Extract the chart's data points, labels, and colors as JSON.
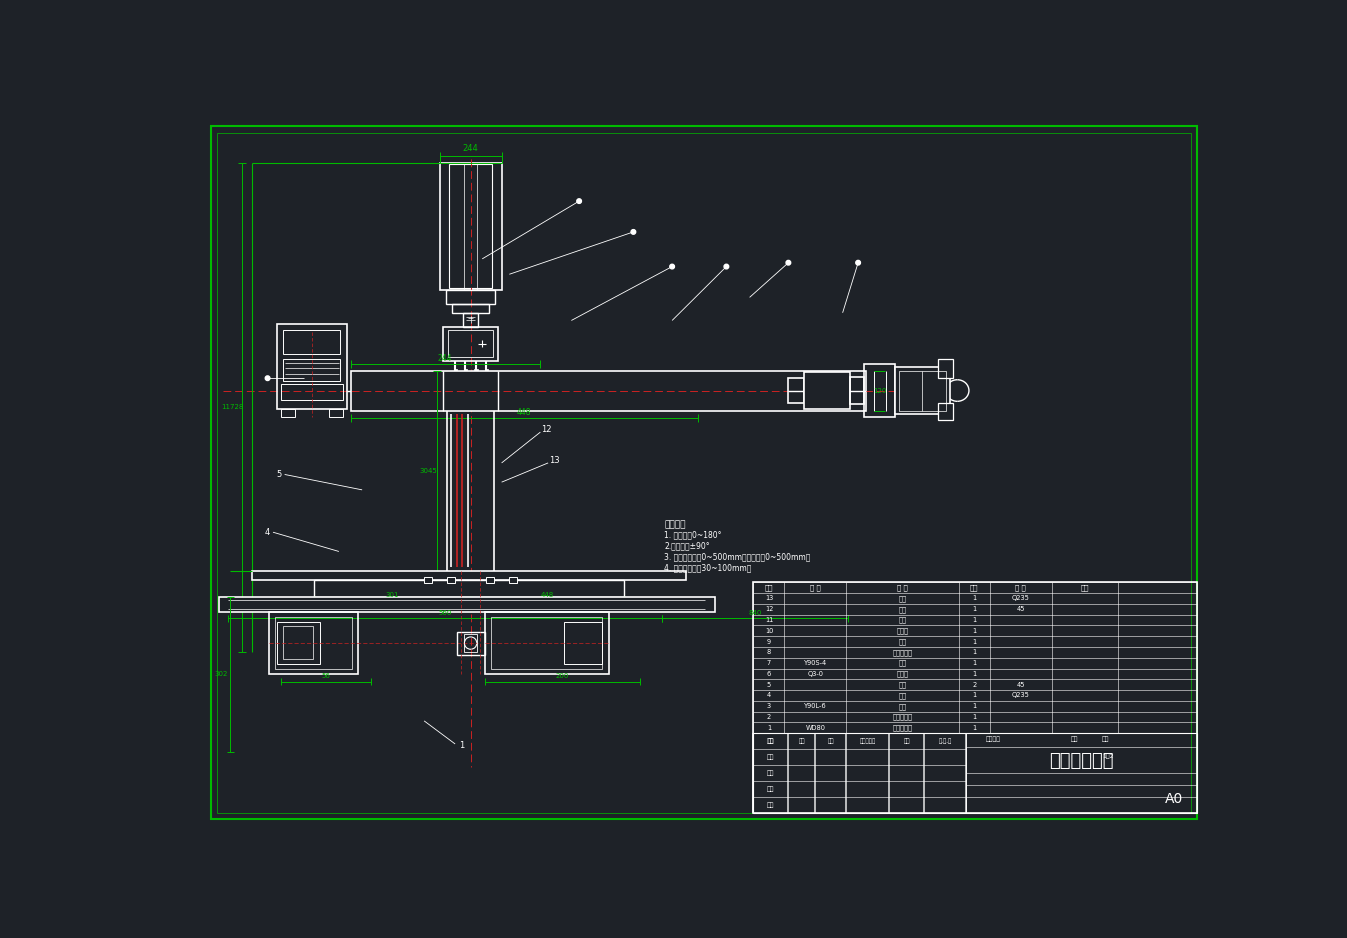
{
  "bg_color": "#1e2228",
  "W": "#ffffff",
  "G": "#00bb00",
  "R": "#cc2222",
  "title": "机械手外观图",
  "tech_notes": [
    "技术要求",
    "1. 机身转动0~180°",
    "2.俯仰回转±90°",
    "3. 臂部上下移动0~500mm，臂部伸缩0~500mm。",
    "4. 手部夹持工件30~100mm。"
  ],
  "bom_data": [
    [
      "13",
      "",
      "掰板",
      "1",
      "Q235",
      ""
    ],
    [
      "12",
      "",
      "端盖",
      "1",
      "45",
      ""
    ],
    [
      "11",
      "",
      "手爪",
      "1",
      "",
      ""
    ],
    [
      "10",
      "",
      "液压缸",
      "1",
      "",
      ""
    ],
    [
      "9",
      "",
      "手臂",
      "1",
      "",
      ""
    ],
    [
      "8",
      "",
      "平键联结器",
      "1",
      "",
      ""
    ],
    [
      "7",
      "Y90S-4",
      "电机",
      "1",
      "",
      ""
    ],
    [
      "6",
      "Q3-0",
      "减速器",
      "1",
      "",
      ""
    ],
    [
      "5",
      "",
      "轴件",
      "2",
      "45",
      ""
    ],
    [
      "4",
      "",
      "底座",
      "1",
      "Q235",
      ""
    ],
    [
      "3",
      "Y90L-6",
      "电机",
      "1",
      "",
      ""
    ],
    [
      "2",
      "",
      "平键联结器",
      "1",
      "",
      ""
    ],
    [
      "1",
      "WD80",
      "蜗杆减速器",
      "1",
      "",
      ""
    ]
  ],
  "bom_headers": [
    "序号",
    "代 号",
    "名 称",
    "数量",
    "材 料",
    "备注"
  ]
}
